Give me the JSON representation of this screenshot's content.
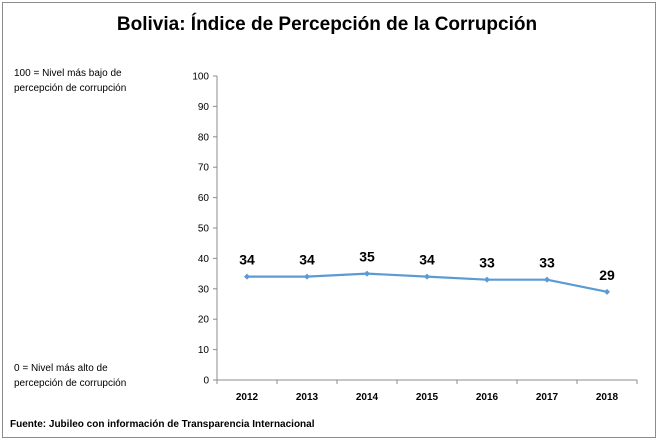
{
  "header": {
    "title": "Bolivia: Índice de Percepción de la Corrupción"
  },
  "notes": {
    "top_line1": "100 = Nivel más bajo de",
    "top_line2": "percepción de corrupción",
    "bottom_line1": "0 = Nivel más alto de",
    "bottom_line2": "percepción de corrupción"
  },
  "footer": {
    "source": "Fuente: Jubileo con información de Transparencia Internacional"
  },
  "colors": {
    "line": "#5b9bd5",
    "axis": "#8c8c8c"
  },
  "chart_data": {
    "type": "line",
    "title": "Bolivia: Índice de Percepción de la Corrupción",
    "categories": [
      "2012",
      "2013",
      "2014",
      "2015",
      "2016",
      "2017",
      "2018"
    ],
    "values": [
      34,
      34,
      35,
      34,
      33,
      33,
      29
    ],
    "ylim": [
      0,
      100
    ],
    "yticks": [
      0,
      10,
      20,
      30,
      40,
      50,
      60,
      70,
      80,
      90,
      100
    ],
    "xlabel": "",
    "ylabel": "",
    "grid": false,
    "legend": "none",
    "data_labels": true
  }
}
